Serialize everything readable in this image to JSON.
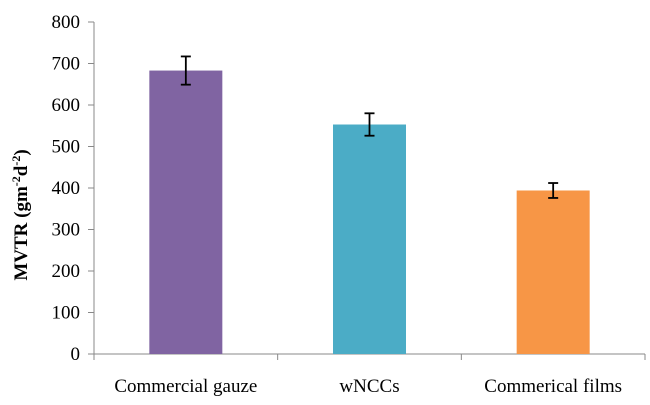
{
  "chart_data": {
    "type": "bar",
    "title": "",
    "xlabel": "",
    "ylabel_parts": [
      "MVTR (gm",
      "-2",
      "d",
      "-2",
      ")"
    ],
    "categories": [
      "Commercial gauze",
      "wNCCs",
      "Commerical films"
    ],
    "values": [
      683,
      553,
      394
    ],
    "errors": [
      34,
      27,
      18
    ],
    "colors": [
      "#8064A2",
      "#4BACC6",
      "#F79646"
    ],
    "ylim": [
      0,
      800
    ],
    "yticks": [
      "0",
      "100",
      "200",
      "300",
      "400",
      "500",
      "600",
      "700",
      "800"
    ],
    "grid": false
  }
}
